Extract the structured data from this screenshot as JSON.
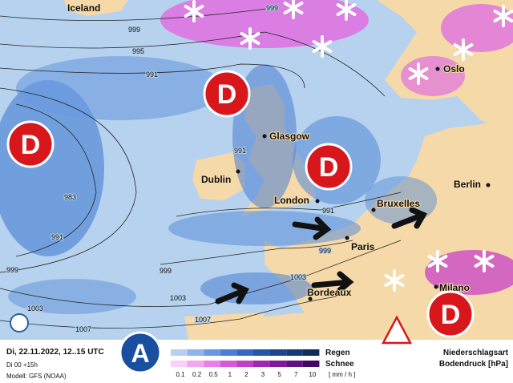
{
  "cities": [
    "Iceland",
    "Oslo",
    "Glasgow",
    "Dublin",
    "London",
    "Bruxelles",
    "Berlin",
    "Paris",
    "Bordeaux",
    "Milano"
  ],
  "isobars": [
    999,
    995,
    991,
    991,
    983,
    991,
    999,
    999,
    1003,
    1003,
    1007,
    1007,
    991,
    999,
    1003,
    999
  ],
  "lows": [
    "D",
    "D",
    "D",
    "D"
  ],
  "high": "A",
  "legend": {
    "date": "Di, 22.11.2022, 12..15 UTC",
    "run": "Di 00 +15h",
    "model": "Modell: GFS (NOAA)",
    "rain": "Regen",
    "snow": "Schnee",
    "scale": [
      0.1,
      0.2,
      0.5,
      1,
      2,
      3,
      5,
      7,
      10
    ],
    "unit": "[ mm / h ]",
    "type_label": "Niederschlagsart",
    "pressure_label": "Bodendruck [hPa]"
  }
}
